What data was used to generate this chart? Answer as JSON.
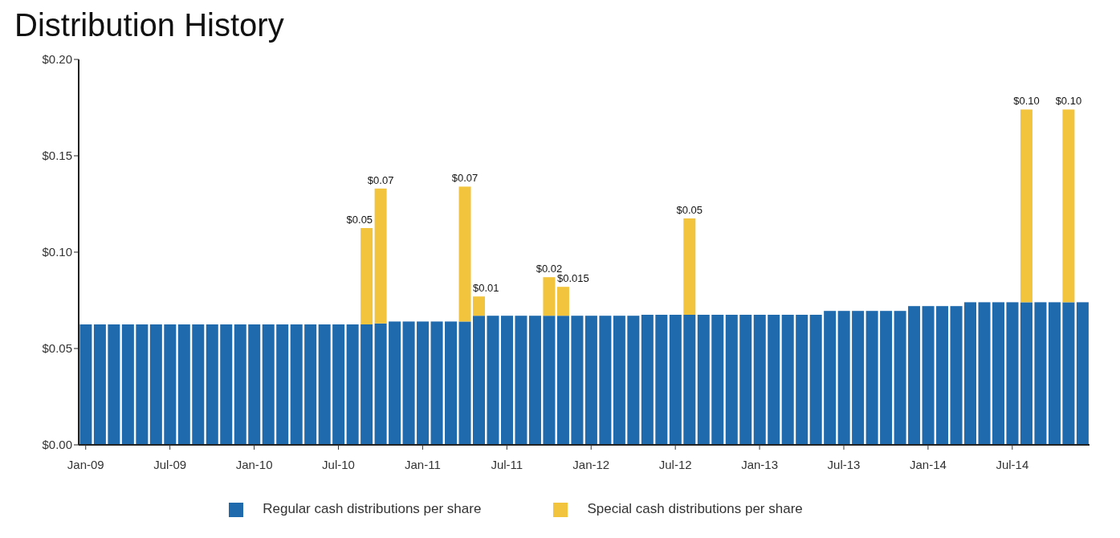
{
  "chart_data": {
    "type": "bar",
    "title": "Distribution History",
    "stacked": true,
    "legend": "bottom",
    "grid": false,
    "categories": [
      "Jan-09",
      null,
      null,
      null,
      null,
      null,
      "Jul-09",
      null,
      null,
      null,
      null,
      null,
      "Jan-10",
      null,
      null,
      null,
      null,
      null,
      "Jul-10",
      null,
      null,
      null,
      null,
      null,
      "Jan-11",
      null,
      null,
      null,
      null,
      null,
      "Jul-11",
      null,
      null,
      null,
      null,
      null,
      "Jan-12",
      null,
      null,
      null,
      null,
      null,
      "Jul-12",
      null,
      null,
      null,
      null,
      null,
      "Jan-13",
      null,
      null,
      null,
      null,
      null,
      "Jul-13",
      null,
      null,
      null,
      null,
      null,
      "Jan-14",
      null,
      null,
      null,
      null,
      null,
      "Jul-14",
      null,
      null,
      null,
      null,
      null
    ],
    "ylim": [
      0,
      0.2
    ],
    "yticks": [
      {
        "value": 0,
        "label": "$0.00"
      },
      {
        "value": 0.05,
        "label": "$0.05"
      },
      {
        "value": 0.1,
        "label": "$0.10"
      },
      {
        "value": 0.15,
        "label": "$0.15"
      },
      {
        "value": 0.2,
        "label": "$0.20"
      }
    ],
    "series": [
      {
        "name": "Regular cash distributions per share",
        "color": "#1f6aad",
        "values": [
          0.0625,
          0.0625,
          0.0625,
          0.0625,
          0.0625,
          0.0625,
          0.0625,
          0.0625,
          0.0625,
          0.0625,
          0.0625,
          0.0625,
          0.0625,
          0.0625,
          0.0625,
          0.0625,
          0.0625,
          0.0625,
          0.0625,
          0.0625,
          0.0625,
          0.063,
          0.064,
          0.064,
          0.064,
          0.064,
          0.064,
          0.064,
          0.067,
          0.067,
          0.067,
          0.067,
          0.067,
          0.067,
          0.067,
          0.067,
          0.067,
          0.067,
          0.067,
          0.067,
          0.0675,
          0.0675,
          0.0675,
          0.0675,
          0.0675,
          0.0675,
          0.0675,
          0.0675,
          0.0675,
          0.0675,
          0.0675,
          0.0675,
          0.0675,
          0.0695,
          0.0695,
          0.0695,
          0.0695,
          0.0695,
          0.0695,
          0.072,
          0.072,
          0.072,
          0.072,
          0.074,
          0.074,
          0.074,
          0.074,
          0.074,
          0.074,
          0.074,
          0.074,
          0.074
        ]
      },
      {
        "name": "Special cash distributions per share",
        "color": "#f2c43d",
        "values": [
          null,
          null,
          null,
          null,
          null,
          null,
          null,
          null,
          null,
          null,
          null,
          null,
          null,
          null,
          null,
          null,
          null,
          null,
          null,
          null,
          0.05,
          0.07,
          null,
          null,
          null,
          null,
          null,
          0.07,
          0.01,
          null,
          null,
          null,
          null,
          0.02,
          0.015,
          null,
          null,
          null,
          null,
          null,
          null,
          null,
          null,
          0.05,
          null,
          null,
          null,
          null,
          null,
          null,
          null,
          null,
          null,
          null,
          null,
          null,
          null,
          null,
          null,
          null,
          null,
          null,
          null,
          null,
          null,
          null,
          null,
          0.1,
          null,
          null,
          0.1,
          null
        ],
        "value_labels": [
          null,
          null,
          null,
          null,
          null,
          null,
          null,
          null,
          null,
          null,
          null,
          null,
          null,
          null,
          null,
          null,
          null,
          null,
          null,
          null,
          "$0.05",
          "$0.07",
          null,
          null,
          null,
          null,
          null,
          "$0.07",
          "$0.01",
          null,
          null,
          null,
          null,
          "$0.02",
          "$0.015",
          null,
          null,
          null,
          null,
          null,
          null,
          null,
          null,
          "$0.05",
          null,
          null,
          null,
          null,
          null,
          null,
          null,
          null,
          null,
          null,
          null,
          null,
          null,
          null,
          null,
          null,
          null,
          null,
          null,
          null,
          null,
          null,
          null,
          "$0.10",
          null,
          null,
          "$0.10",
          null
        ]
      }
    ]
  }
}
